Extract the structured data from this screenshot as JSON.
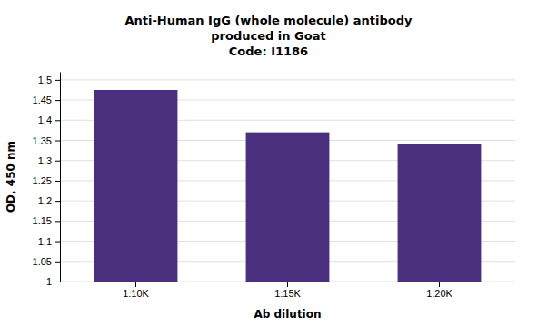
{
  "chart_data": {
    "type": "bar",
    "title": [
      "Anti-Human IgG (whole molecule) antibody",
      "produced in Goat",
      "Code: I1186"
    ],
    "xlabel": "Ab dilution",
    "ylabel": "OD, 450 nm",
    "categories": [
      "1:10K",
      "1:15K",
      "1:20K"
    ],
    "values": [
      1.475,
      1.37,
      1.34
    ],
    "color": "#4B3080",
    "ylim": [
      1.0,
      1.52
    ],
    "yticks": [
      1.0,
      1.05,
      1.1,
      1.15,
      1.2,
      1.25,
      1.3,
      1.35,
      1.4,
      1.45,
      1.5
    ],
    "grid": true
  }
}
